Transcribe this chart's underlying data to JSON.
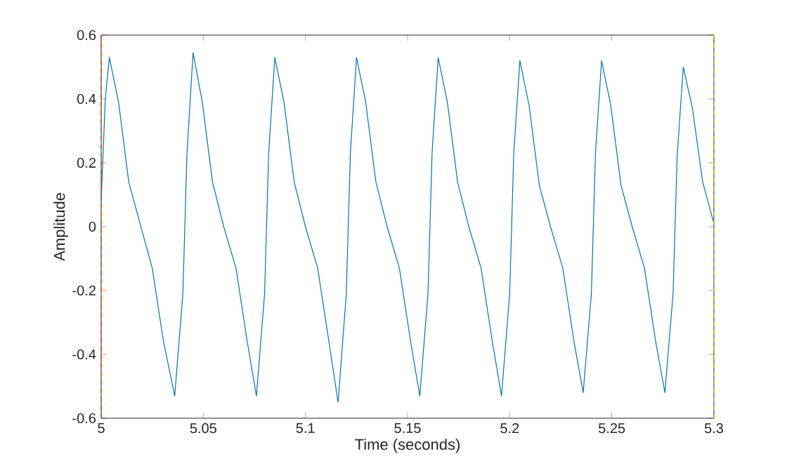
{
  "chart_data": {
    "type": "line",
    "xlabel": "Time (seconds)",
    "ylabel": "Amplitude",
    "xlim": [
      5,
      5.3
    ],
    "ylim": [
      -0.6,
      0.6
    ],
    "xticks": [
      5,
      5.05,
      5.1,
      5.15,
      5.2,
      5.25,
      5.3
    ],
    "yticks": [
      -0.6,
      -0.4,
      -0.2,
      0,
      0.2,
      0.4,
      0.6
    ],
    "ref_lines": [
      {
        "axis": "x",
        "value": 5,
        "color": "#d95319",
        "line_style": "dashed"
      },
      {
        "axis": "x",
        "value": 5.3,
        "color": "#edb120",
        "line_style": "dashed"
      }
    ],
    "series": [
      {
        "color": "#0072bd",
        "x": [
          5.0,
          5.002,
          5.004,
          5.0085,
          5.0135,
          5.019,
          5.025,
          5.0305,
          5.036,
          5.04,
          5.042,
          5.045,
          5.0495,
          5.0545,
          5.06,
          5.066,
          5.0715,
          5.076,
          5.08,
          5.082,
          5.085,
          5.0895,
          5.0945,
          5.1,
          5.106,
          5.1115,
          5.116,
          5.12,
          5.122,
          5.125,
          5.1295,
          5.1345,
          5.14,
          5.146,
          5.1515,
          5.156,
          5.16,
          5.162,
          5.165,
          5.1695,
          5.1745,
          5.18,
          5.186,
          5.1915,
          5.196,
          5.2,
          5.202,
          5.205,
          5.2095,
          5.2145,
          5.22,
          5.226,
          5.2315,
          5.236,
          5.24,
          5.242,
          5.245,
          5.2495,
          5.2545,
          5.26,
          5.266,
          5.2715,
          5.276,
          5.28,
          5.282,
          5.285,
          5.2895,
          5.2945,
          5.3
        ],
        "values": [
          0.08,
          0.4,
          0.53,
          0.39,
          0.14,
          0.01,
          -0.13,
          -0.36,
          -0.53,
          -0.21,
          0.23,
          0.545,
          0.39,
          0.14,
          0.0,
          -0.13,
          -0.36,
          -0.53,
          -0.21,
          0.23,
          0.53,
          0.39,
          0.14,
          0.0,
          -0.13,
          -0.36,
          -0.55,
          -0.21,
          0.23,
          0.53,
          0.39,
          0.14,
          0.0,
          -0.13,
          -0.36,
          -0.53,
          -0.21,
          0.23,
          0.53,
          0.39,
          0.14,
          0.0,
          -0.13,
          -0.36,
          -0.53,
          -0.21,
          0.23,
          0.52,
          0.38,
          0.13,
          0.0,
          -0.13,
          -0.36,
          -0.52,
          -0.21,
          0.23,
          0.52,
          0.38,
          0.13,
          0.0,
          -0.13,
          -0.36,
          -0.52,
          -0.21,
          0.22,
          0.5,
          0.37,
          0.14,
          0.01
        ]
      }
    ]
  }
}
